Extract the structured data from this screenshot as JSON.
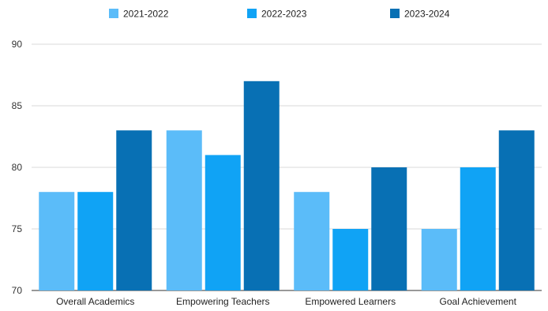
{
  "chart_data": {
    "type": "bar",
    "categories": [
      "Overall Academics",
      "Empowering Teachers",
      "Empowered Learners",
      "Goal Achievement"
    ],
    "series": [
      {
        "name": "2021-2022",
        "color": "#5bbcf9",
        "values": [
          78,
          83,
          78,
          75
        ]
      },
      {
        "name": "2022-2023",
        "color": "#10a3f5",
        "values": [
          78,
          81,
          75,
          80
        ]
      },
      {
        "name": "2023-2024",
        "color": "#0870b4",
        "values": [
          83,
          87,
          80,
          83
        ]
      }
    ],
    "ylim": [
      70,
      90
    ],
    "yticks": [
      "70",
      "75",
      "80",
      "85",
      "90"
    ],
    "grid": true,
    "legend": "top-center",
    "title": "",
    "xlabel": "",
    "ylabel": ""
  }
}
